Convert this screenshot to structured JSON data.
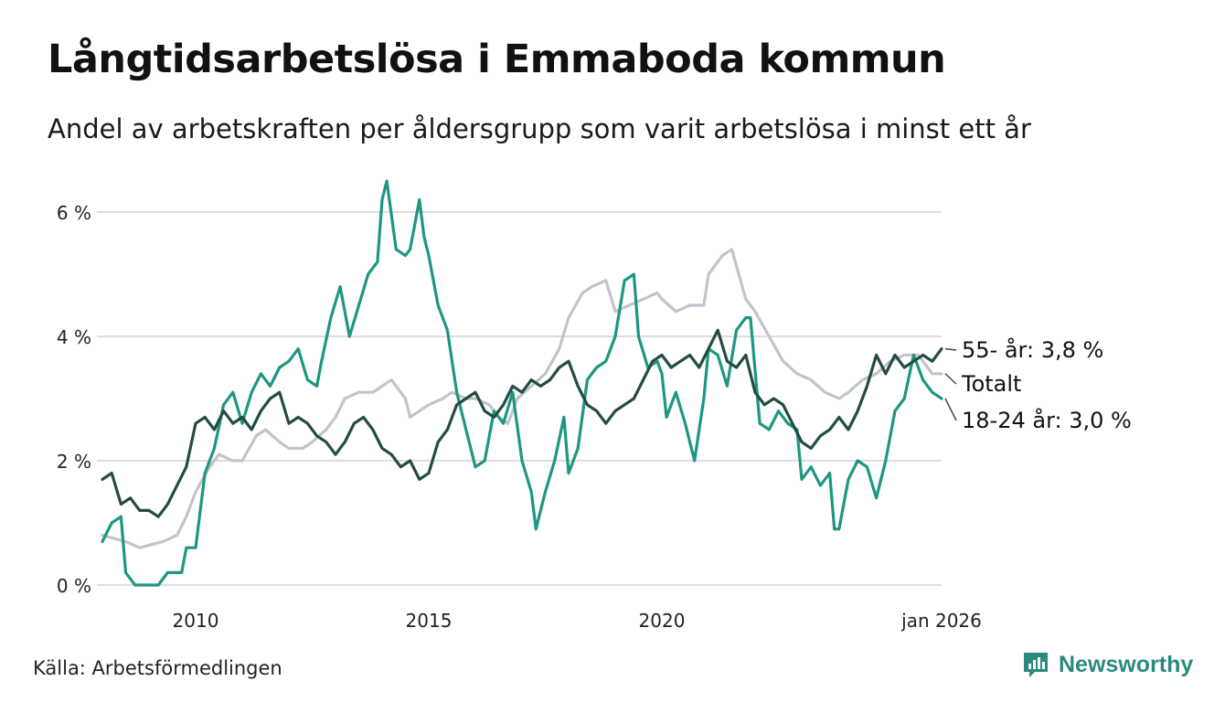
{
  "header": {
    "title": "Långtidsarbetslösa i Emmaboda kommun",
    "subtitle": "Andel av arbetskraften per åldersgrupp som varit arbetslösa i minst ett år"
  },
  "footer": {
    "source": "Källa: Arbetsförmedlingen",
    "brand": "Newsworthy"
  },
  "colors": {
    "total": "#c4c2cc",
    "youth": "#1e9682",
    "senior": "#234c43",
    "grid": "#dddddd",
    "brand": "#2b8a7e"
  },
  "chart_data": {
    "type": "line",
    "title": "Långtidsarbetslösa i Emmaboda kommun",
    "xlabel": "",
    "ylabel": "",
    "xlim": [
      2008.0,
      2026.0
    ],
    "ylim": [
      0,
      6.5
    ],
    "yticks": [
      0,
      2,
      4,
      6
    ],
    "ytick_labels": [
      "0 %",
      "2 %",
      "4 %",
      "6 %"
    ],
    "xticks": [
      2010,
      2015,
      2020,
      2026
    ],
    "xtick_labels": [
      "2010",
      "2015",
      "2020",
      "jan 2026"
    ],
    "grid": true,
    "series": [
      {
        "key": "total",
        "name": "Totalt",
        "end_label": "Totalt",
        "points": [
          [
            2008.0,
            0.8
          ],
          [
            2008.5,
            0.7
          ],
          [
            2008.8,
            0.6
          ],
          [
            2009.3,
            0.7
          ],
          [
            2009.6,
            0.8
          ],
          [
            2009.8,
            1.1
          ],
          [
            2010.0,
            1.5
          ],
          [
            2010.3,
            1.9
          ],
          [
            2010.5,
            2.1
          ],
          [
            2010.8,
            2.0
          ],
          [
            2011.0,
            2.0
          ],
          [
            2011.3,
            2.4
          ],
          [
            2011.5,
            2.5
          ],
          [
            2011.8,
            2.3
          ],
          [
            2012.0,
            2.2
          ],
          [
            2012.3,
            2.2
          ],
          [
            2012.5,
            2.3
          ],
          [
            2012.8,
            2.5
          ],
          [
            2013.0,
            2.7
          ],
          [
            2013.2,
            3.0
          ],
          [
            2013.5,
            3.1
          ],
          [
            2013.8,
            3.1
          ],
          [
            2014.0,
            3.2
          ],
          [
            2014.2,
            3.3
          ],
          [
            2014.5,
            3.0
          ],
          [
            2014.6,
            2.7
          ],
          [
            2014.8,
            2.8
          ],
          [
            2015.0,
            2.9
          ],
          [
            2015.3,
            3.0
          ],
          [
            2015.5,
            3.1
          ],
          [
            2015.8,
            3.0
          ],
          [
            2016.0,
            3.0
          ],
          [
            2016.3,
            2.9
          ],
          [
            2016.5,
            2.7
          ],
          [
            2016.7,
            2.6
          ],
          [
            2016.9,
            3.0
          ],
          [
            2017.2,
            3.2
          ],
          [
            2017.5,
            3.4
          ],
          [
            2017.8,
            3.8
          ],
          [
            2018.0,
            4.3
          ],
          [
            2018.3,
            4.7
          ],
          [
            2018.5,
            4.8
          ],
          [
            2018.8,
            4.9
          ],
          [
            2019.0,
            4.4
          ],
          [
            2019.3,
            4.5
          ],
          [
            2019.6,
            4.6
          ],
          [
            2019.9,
            4.7
          ],
          [
            2020.0,
            4.6
          ],
          [
            2020.3,
            4.4
          ],
          [
            2020.6,
            4.5
          ],
          [
            2020.9,
            4.5
          ],
          [
            2021.0,
            5.0
          ],
          [
            2021.3,
            5.3
          ],
          [
            2021.5,
            5.4
          ],
          [
            2021.8,
            4.6
          ],
          [
            2022.0,
            4.4
          ],
          [
            2022.3,
            4.0
          ],
          [
            2022.6,
            3.6
          ],
          [
            2022.9,
            3.4
          ],
          [
            2023.2,
            3.3
          ],
          [
            2023.5,
            3.1
          ],
          [
            2023.8,
            3.0
          ],
          [
            2024.0,
            3.1
          ],
          [
            2024.3,
            3.3
          ],
          [
            2024.6,
            3.4
          ],
          [
            2024.9,
            3.6
          ],
          [
            2025.2,
            3.7
          ],
          [
            2025.5,
            3.7
          ],
          [
            2025.8,
            3.4
          ],
          [
            2026.0,
            3.4
          ]
        ]
      },
      {
        "key": "youth",
        "name": "18-24 år",
        "end_label": "18-24 år: 3,0 %",
        "points": [
          [
            2008.0,
            0.7
          ],
          [
            2008.2,
            1.0
          ],
          [
            2008.4,
            1.1
          ],
          [
            2008.5,
            0.2
          ],
          [
            2008.7,
            0.0
          ],
          [
            2009.0,
            0.0
          ],
          [
            2009.2,
            0.0
          ],
          [
            2009.4,
            0.2
          ],
          [
            2009.7,
            0.2
          ],
          [
            2009.8,
            0.6
          ],
          [
            2010.0,
            0.6
          ],
          [
            2010.2,
            1.8
          ],
          [
            2010.4,
            2.2
          ],
          [
            2010.6,
            2.9
          ],
          [
            2010.8,
            3.1
          ],
          [
            2011.0,
            2.6
          ],
          [
            2011.2,
            3.1
          ],
          [
            2011.4,
            3.4
          ],
          [
            2011.6,
            3.2
          ],
          [
            2011.8,
            3.5
          ],
          [
            2012.0,
            3.6
          ],
          [
            2012.2,
            3.8
          ],
          [
            2012.4,
            3.3
          ],
          [
            2012.6,
            3.2
          ],
          [
            2012.7,
            3.6
          ],
          [
            2012.9,
            4.3
          ],
          [
            2013.1,
            4.8
          ],
          [
            2013.3,
            4.0
          ],
          [
            2013.5,
            4.5
          ],
          [
            2013.7,
            5.0
          ],
          [
            2013.9,
            5.2
          ],
          [
            2014.0,
            6.2
          ],
          [
            2014.1,
            6.5
          ],
          [
            2014.3,
            5.4
          ],
          [
            2014.5,
            5.3
          ],
          [
            2014.6,
            5.4
          ],
          [
            2014.8,
            6.2
          ],
          [
            2014.9,
            5.6
          ],
          [
            2015.0,
            5.3
          ],
          [
            2015.2,
            4.5
          ],
          [
            2015.4,
            4.1
          ],
          [
            2015.6,
            3.1
          ],
          [
            2015.8,
            2.5
          ],
          [
            2016.0,
            1.9
          ],
          [
            2016.2,
            2.0
          ],
          [
            2016.4,
            2.8
          ],
          [
            2016.6,
            2.6
          ],
          [
            2016.8,
            3.1
          ],
          [
            2017.0,
            2.0
          ],
          [
            2017.2,
            1.5
          ],
          [
            2017.3,
            0.9
          ],
          [
            2017.5,
            1.5
          ],
          [
            2017.7,
            2.0
          ],
          [
            2017.9,
            2.7
          ],
          [
            2018.0,
            1.8
          ],
          [
            2018.2,
            2.2
          ],
          [
            2018.4,
            3.3
          ],
          [
            2018.6,
            3.5
          ],
          [
            2018.8,
            3.6
          ],
          [
            2019.0,
            4.0
          ],
          [
            2019.2,
            4.9
          ],
          [
            2019.4,
            5.0
          ],
          [
            2019.5,
            4.0
          ],
          [
            2019.7,
            3.5
          ],
          [
            2019.9,
            3.6
          ],
          [
            2020.0,
            3.4
          ],
          [
            2020.1,
            2.7
          ],
          [
            2020.3,
            3.1
          ],
          [
            2020.5,
            2.6
          ],
          [
            2020.7,
            2.0
          ],
          [
            2020.9,
            3.0
          ],
          [
            2021.0,
            3.8
          ],
          [
            2021.2,
            3.7
          ],
          [
            2021.4,
            3.2
          ],
          [
            2021.6,
            4.1
          ],
          [
            2021.8,
            4.3
          ],
          [
            2021.9,
            4.3
          ],
          [
            2022.1,
            2.6
          ],
          [
            2022.3,
            2.5
          ],
          [
            2022.5,
            2.8
          ],
          [
            2022.7,
            2.6
          ],
          [
            2022.9,
            2.5
          ],
          [
            2023.0,
            1.7
          ],
          [
            2023.2,
            1.9
          ],
          [
            2023.4,
            1.6
          ],
          [
            2023.6,
            1.8
          ],
          [
            2023.7,
            0.9
          ],
          [
            2023.8,
            0.9
          ],
          [
            2024.0,
            1.7
          ],
          [
            2024.2,
            2.0
          ],
          [
            2024.4,
            1.9
          ],
          [
            2024.6,
            1.4
          ],
          [
            2024.8,
            2.0
          ],
          [
            2025.0,
            2.8
          ],
          [
            2025.2,
            3.0
          ],
          [
            2025.4,
            3.7
          ],
          [
            2025.6,
            3.3
          ],
          [
            2025.8,
            3.1
          ],
          [
            2026.0,
            3.0
          ]
        ]
      },
      {
        "key": "senior",
        "name": "55- år",
        "end_label": "55- år: 3,8 %",
        "points": [
          [
            2008.0,
            1.7
          ],
          [
            2008.2,
            1.8
          ],
          [
            2008.4,
            1.3
          ],
          [
            2008.6,
            1.4
          ],
          [
            2008.8,
            1.2
          ],
          [
            2009.0,
            1.2
          ],
          [
            2009.2,
            1.1
          ],
          [
            2009.4,
            1.3
          ],
          [
            2009.6,
            1.6
          ],
          [
            2009.8,
            1.9
          ],
          [
            2010.0,
            2.6
          ],
          [
            2010.2,
            2.7
          ],
          [
            2010.4,
            2.5
          ],
          [
            2010.6,
            2.8
          ],
          [
            2010.8,
            2.6
          ],
          [
            2011.0,
            2.7
          ],
          [
            2011.2,
            2.5
          ],
          [
            2011.4,
            2.8
          ],
          [
            2011.6,
            3.0
          ],
          [
            2011.8,
            3.1
          ],
          [
            2012.0,
            2.6
          ],
          [
            2012.2,
            2.7
          ],
          [
            2012.4,
            2.6
          ],
          [
            2012.6,
            2.4
          ],
          [
            2012.8,
            2.3
          ],
          [
            2013.0,
            2.1
          ],
          [
            2013.2,
            2.3
          ],
          [
            2013.4,
            2.6
          ],
          [
            2013.6,
            2.7
          ],
          [
            2013.8,
            2.5
          ],
          [
            2014.0,
            2.2
          ],
          [
            2014.2,
            2.1
          ],
          [
            2014.4,
            1.9
          ],
          [
            2014.6,
            2.0
          ],
          [
            2014.8,
            1.7
          ],
          [
            2015.0,
            1.8
          ],
          [
            2015.2,
            2.3
          ],
          [
            2015.4,
            2.5
          ],
          [
            2015.6,
            2.9
          ],
          [
            2015.8,
            3.0
          ],
          [
            2016.0,
            3.1
          ],
          [
            2016.2,
            2.8
          ],
          [
            2016.4,
            2.7
          ],
          [
            2016.6,
            2.9
          ],
          [
            2016.8,
            3.2
          ],
          [
            2017.0,
            3.1
          ],
          [
            2017.2,
            3.3
          ],
          [
            2017.4,
            3.2
          ],
          [
            2017.6,
            3.3
          ],
          [
            2017.8,
            3.5
          ],
          [
            2018.0,
            3.6
          ],
          [
            2018.2,
            3.2
          ],
          [
            2018.4,
            2.9
          ],
          [
            2018.6,
            2.8
          ],
          [
            2018.8,
            2.6
          ],
          [
            2019.0,
            2.8
          ],
          [
            2019.2,
            2.9
          ],
          [
            2019.4,
            3.0
          ],
          [
            2019.6,
            3.3
          ],
          [
            2019.8,
            3.6
          ],
          [
            2020.0,
            3.7
          ],
          [
            2020.2,
            3.5
          ],
          [
            2020.4,
            3.6
          ],
          [
            2020.6,
            3.7
          ],
          [
            2020.8,
            3.5
          ],
          [
            2021.0,
            3.8
          ],
          [
            2021.2,
            4.1
          ],
          [
            2021.4,
            3.6
          ],
          [
            2021.6,
            3.5
          ],
          [
            2021.8,
            3.7
          ],
          [
            2022.0,
            3.1
          ],
          [
            2022.2,
            2.9
          ],
          [
            2022.4,
            3.0
          ],
          [
            2022.6,
            2.9
          ],
          [
            2022.8,
            2.6
          ],
          [
            2023.0,
            2.3
          ],
          [
            2023.2,
            2.2
          ],
          [
            2023.4,
            2.4
          ],
          [
            2023.6,
            2.5
          ],
          [
            2023.8,
            2.7
          ],
          [
            2024.0,
            2.5
          ],
          [
            2024.2,
            2.8
          ],
          [
            2024.4,
            3.2
          ],
          [
            2024.6,
            3.7
          ],
          [
            2024.8,
            3.4
          ],
          [
            2025.0,
            3.7
          ],
          [
            2025.2,
            3.5
          ],
          [
            2025.4,
            3.6
          ],
          [
            2025.6,
            3.7
          ],
          [
            2025.8,
            3.6
          ],
          [
            2026.0,
            3.8
          ]
        ]
      }
    ]
  }
}
